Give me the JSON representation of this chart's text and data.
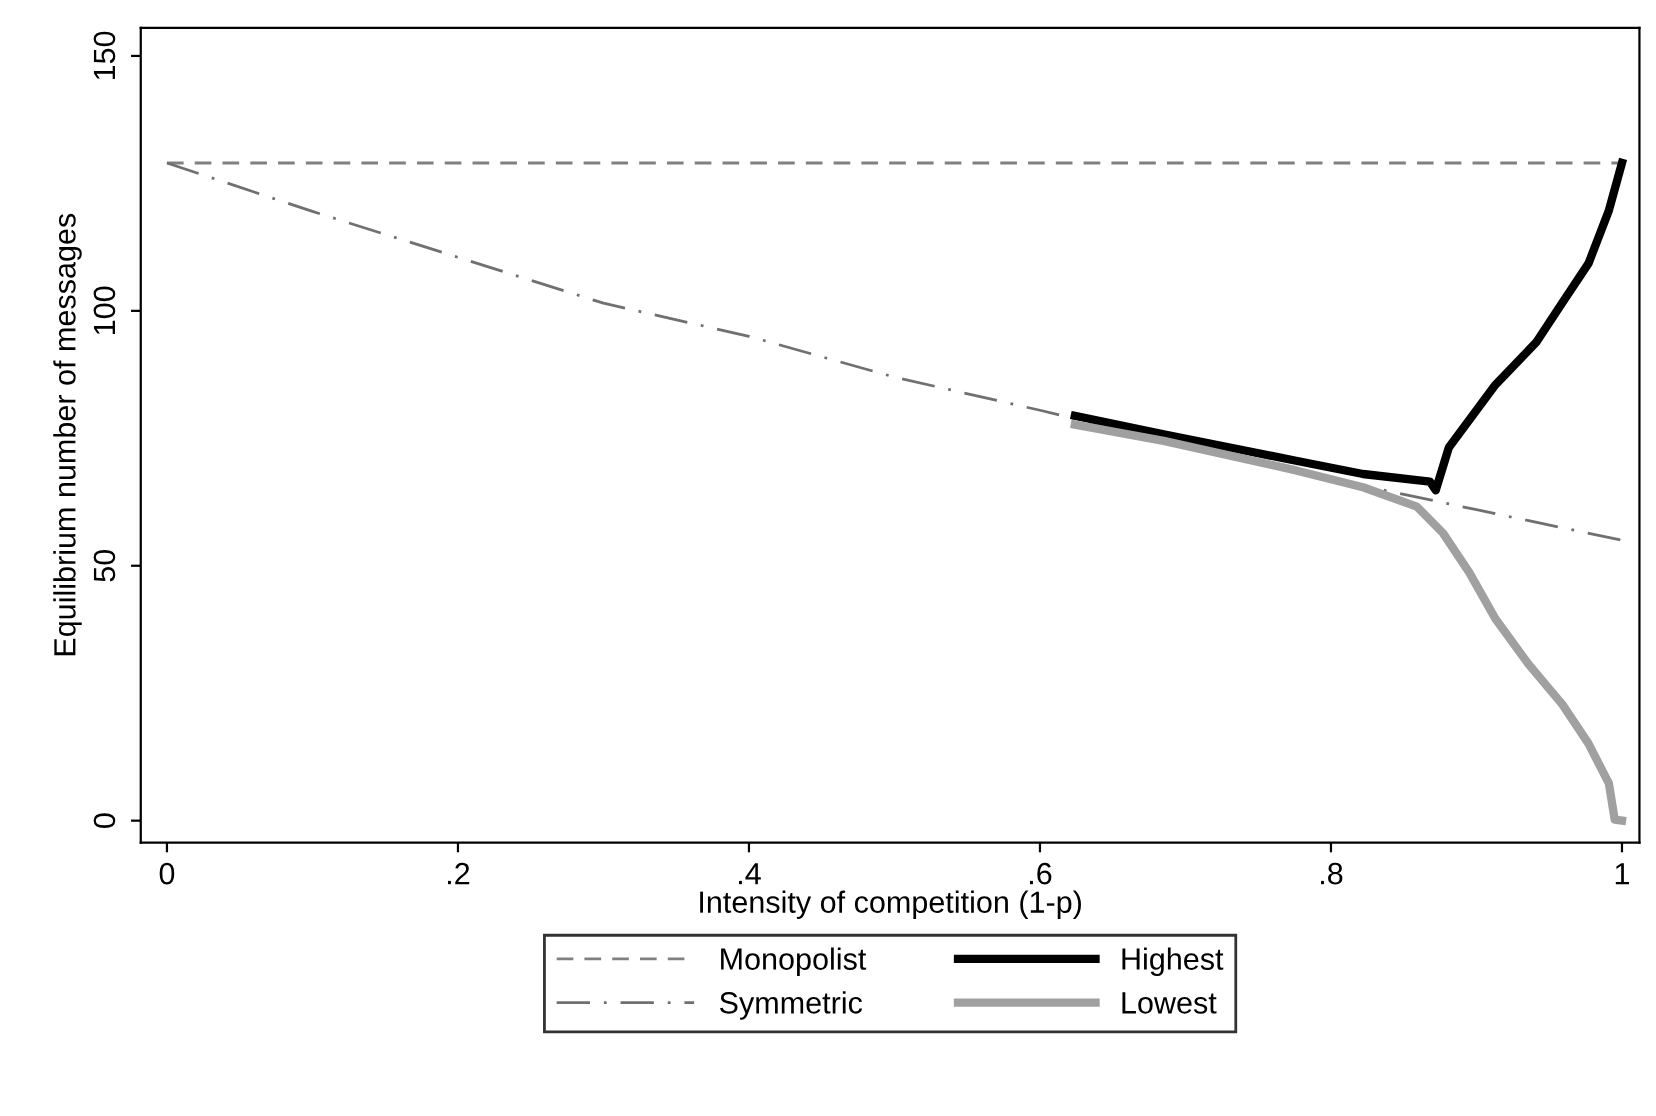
{
  "chart_data": {
    "type": "line",
    "xlabel": "Intensity of competition (1-p)",
    "ylabel": "Equilibrium number of messages",
    "xlim": [
      -0.018,
      1.012
    ],
    "ylim": [
      -4.3,
      155.5
    ],
    "xticks": [
      0,
      {
        "value": 0.2,
        "label": ".2"
      },
      {
        "value": 0.4,
        "label": ".4"
      },
      {
        "value": 0.6,
        "label": ".6"
      },
      {
        "value": 0.8,
        "label": ".8"
      },
      1
    ],
    "yticks": [
      0,
      50,
      100,
      150
    ],
    "grid": false,
    "legend": "bottom",
    "series": [
      {
        "name": "Monopolist",
        "color": "#808080",
        "line_style": "dashed",
        "x": [
          0,
          1
        ],
        "values": [
          129,
          129
        ]
      },
      {
        "name": "Symmetric",
        "color": "#707070",
        "line_style": "dashdot",
        "x": [
          0,
          0.1,
          0.2,
          0.3,
          0.4,
          0.5,
          0.6,
          0.7,
          0.8,
          0.9,
          1
        ],
        "values": [
          129,
          119.5,
          110.5,
          101.5,
          95,
          87,
          80.5,
          73.5,
          67,
          61,
          55
        ]
      },
      {
        "name": "Highest",
        "color": "#000000",
        "line_style": "solid",
        "x": [
          0.624,
          0.685,
          0.776,
          0.822,
          0.868,
          0.872,
          0.881,
          0.913,
          0.941,
          0.959,
          0.977,
          0.991,
          1
        ],
        "values": [
          79.4,
          75.8,
          70.6,
          68,
          66.5,
          64.8,
          73.2,
          85.5,
          93.8,
          101.6,
          109.3,
          119.7,
          129
        ]
      },
      {
        "name": "Lowest",
        "color": "#a0a0a0",
        "line_style": "solid",
        "x": [
          0.624,
          0.685,
          0.776,
          0.822,
          0.859,
          0.877,
          0.895,
          0.913,
          0.936,
          0.959,
          0.977,
          0.991,
          0.995,
          1
        ],
        "values": [
          77.7,
          74.5,
          68.7,
          65.4,
          61.6,
          56.4,
          48.7,
          39.6,
          30.6,
          22.8,
          15.1,
          7.3,
          0.2,
          0
        ]
      }
    ]
  }
}
